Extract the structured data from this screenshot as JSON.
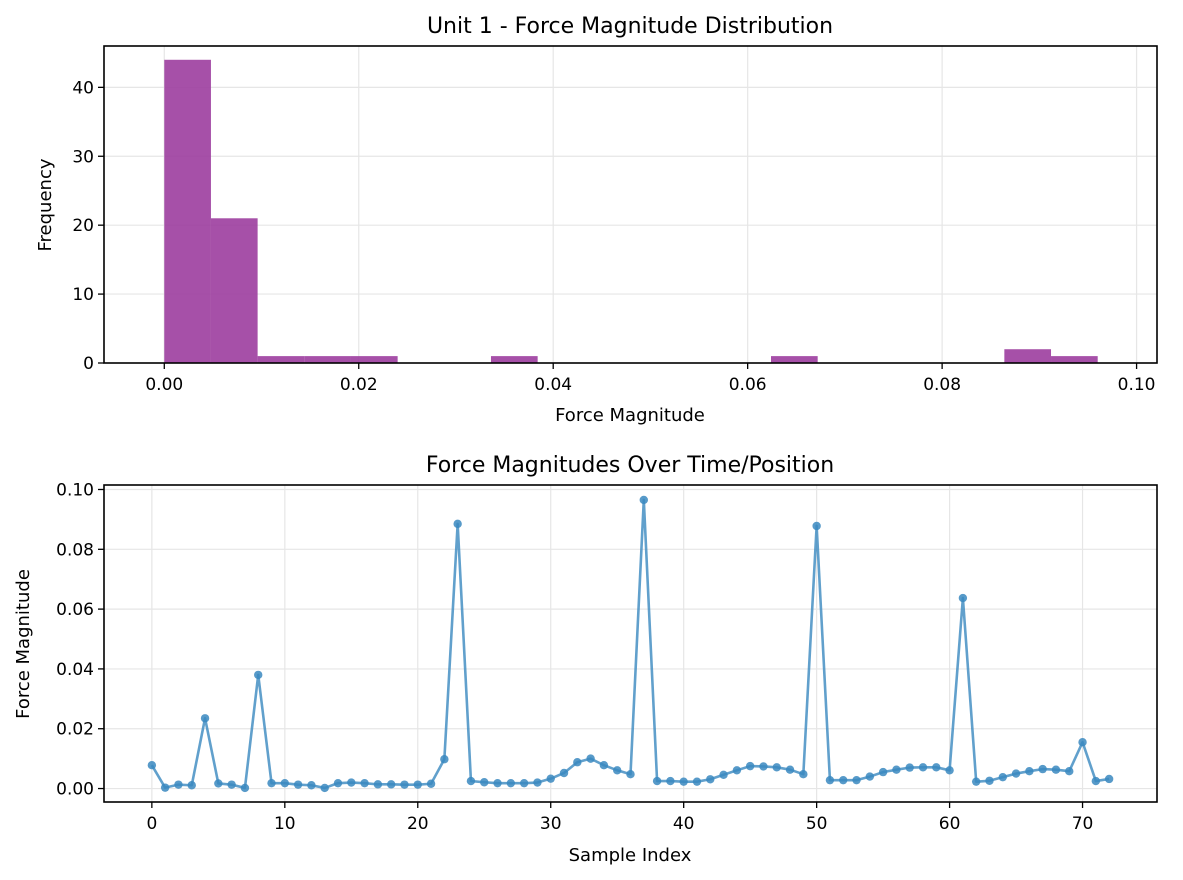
{
  "chart_data": [
    {
      "type": "bar",
      "title": "Unit 1 - Force Magnitude Distribution",
      "xlabel": "Force Magnitude",
      "ylabel": "Frequency",
      "xlim": [
        -0.0062,
        0.1021
      ],
      "ylim": [
        0,
        46
      ],
      "xticks": [
        0.0,
        0.02,
        0.04,
        0.06,
        0.08,
        0.1
      ],
      "xtick_labels": [
        "0.00",
        "0.02",
        "0.04",
        "0.06",
        "0.08",
        "0.10"
      ],
      "yticks": [
        0,
        10,
        20,
        30,
        40
      ],
      "ytick_labels": [
        "0",
        "10",
        "20",
        "30",
        "40"
      ],
      "grid": true,
      "color": "#9c3d9f",
      "bin_width": 0.0048,
      "bins": [
        {
          "x0": 0.0,
          "x1": 0.0048,
          "count": 44
        },
        {
          "x0": 0.0048,
          "x1": 0.0096,
          "count": 21
        },
        {
          "x0": 0.0096,
          "x1": 0.0144,
          "count": 1
        },
        {
          "x0": 0.0144,
          "x1": 0.0192,
          "count": 1
        },
        {
          "x0": 0.0192,
          "x1": 0.024,
          "count": 1
        },
        {
          "x0": 0.0336,
          "x1": 0.0384,
          "count": 1
        },
        {
          "x0": 0.0624,
          "x1": 0.0672,
          "count": 1
        },
        {
          "x0": 0.0864,
          "x1": 0.0912,
          "count": 2
        },
        {
          "x0": 0.0912,
          "x1": 0.096,
          "count": 1
        }
      ]
    },
    {
      "type": "line",
      "title": "Force Magnitudes Over Time/Position",
      "xlabel": "Sample Index",
      "ylabel": "Force Magnitude",
      "xlim": [
        -3.6,
        75.6
      ],
      "ylim": [
        -0.0045,
        0.1015
      ],
      "xticks": [
        0,
        10,
        20,
        30,
        40,
        50,
        60,
        70
      ],
      "xtick_labels": [
        "0",
        "10",
        "20",
        "30",
        "40",
        "50",
        "60",
        "70"
      ],
      "yticks": [
        0.0,
        0.02,
        0.04,
        0.06,
        0.08,
        0.1
      ],
      "ytick_labels": [
        "0.00",
        "0.02",
        "0.04",
        "0.06",
        "0.08",
        "0.10"
      ],
      "grid": true,
      "color": "#3a88bf",
      "x": [
        0,
        1,
        2,
        3,
        4,
        5,
        6,
        7,
        8,
        9,
        10,
        11,
        12,
        13,
        14,
        15,
        16,
        17,
        18,
        19,
        20,
        21,
        22,
        23,
        24,
        25,
        26,
        27,
        28,
        29,
        30,
        31,
        32,
        33,
        34,
        35,
        36,
        37,
        38,
        39,
        40,
        41,
        42,
        43,
        44,
        45,
        46,
        47,
        48,
        49,
        50,
        51,
        52,
        53,
        54,
        55,
        56,
        57,
        58,
        59,
        60,
        61,
        62,
        63,
        64,
        65,
        66,
        67,
        68,
        69,
        70,
        71,
        72
      ],
      "y": [
        0.0078,
        0.0003,
        0.0013,
        0.0011,
        0.0235,
        0.0017,
        0.0013,
        0.0002,
        0.038,
        0.0018,
        0.0018,
        0.0013,
        0.0011,
        0.0002,
        0.0018,
        0.002,
        0.0018,
        0.0014,
        0.0014,
        0.0013,
        0.0013,
        0.0016,
        0.0098,
        0.0885,
        0.0025,
        0.0021,
        0.0018,
        0.0018,
        0.0018,
        0.002,
        0.0033,
        0.0052,
        0.0088,
        0.01,
        0.0078,
        0.0061,
        0.0048,
        0.0965,
        0.0025,
        0.0025,
        0.0023,
        0.0023,
        0.0031,
        0.0046,
        0.0061,
        0.0075,
        0.0074,
        0.0071,
        0.0063,
        0.0048,
        0.0878,
        0.0028,
        0.0028,
        0.0028,
        0.004,
        0.0055,
        0.0063,
        0.007,
        0.0071,
        0.0071,
        0.0061,
        0.0637,
        0.0023,
        0.0026,
        0.0038,
        0.005,
        0.0058,
        0.0065,
        0.0063,
        0.0058,
        0.0155,
        0.0025,
        0.0032
      ]
    }
  ]
}
